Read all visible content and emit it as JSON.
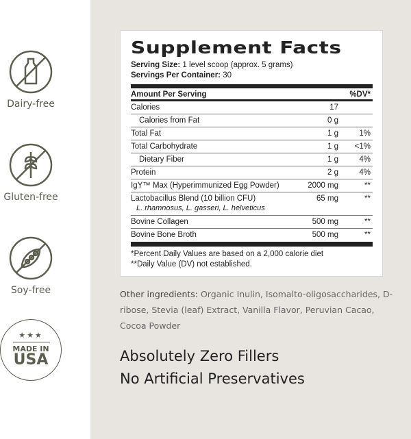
{
  "badges": [
    {
      "label": "Dairy-free",
      "icon": "no-dairy-icon"
    },
    {
      "label": "Gluten-free",
      "icon": "no-gluten-icon"
    },
    {
      "label": "Soy-free",
      "icon": "no-soy-icon"
    },
    {
      "label": "MADE IN USA",
      "line1": "MADE IN",
      "line2": "USA",
      "icon": "made-in-usa-seal"
    }
  ],
  "facts": {
    "title": "Supplement Facts",
    "serving_size_label": "Serving Size:",
    "serving_size": "1 level scoop (approx. 5 grams)",
    "servings_label": "Servings Per Container:",
    "servings": "30",
    "header": {
      "name": "Amount Per Serving",
      "dv": "%DV*"
    },
    "rows": [
      {
        "name": "Calories",
        "amount": "17",
        "dv": ""
      },
      {
        "name": "Calories from Fat",
        "amount": "0 g",
        "dv": ""
      },
      {
        "name": "Total Fat",
        "amount": "1 g",
        "dv": "1%"
      },
      {
        "name": "Total Carbohydrate",
        "amount": "1 g",
        "dv": "<1%"
      },
      {
        "name": "Dietary Fiber",
        "amount": "1 g",
        "dv": "4%"
      },
      {
        "name": "Protein",
        "amount": "2 g",
        "dv": "4%"
      },
      {
        "name": "IgY™ Max (Hyperimmunized Egg Powder)",
        "amount": "2000 mg",
        "dv": "**"
      },
      {
        "name": "Lactobacillus Blend (10 billion CFU)",
        "sub": "L. rhamnosus, L. gasseri, L. helveticus",
        "amount": "65 mg",
        "dv": "**"
      },
      {
        "name": "Bovine Collagen",
        "amount": "500 mg",
        "dv": "**"
      },
      {
        "name": "Bovine Bone Broth",
        "amount": "500 mg",
        "dv": "**"
      }
    ],
    "footnote1": "*Percent Daily Values are based on a 2,000 calorie diet",
    "footnote2": "**Daily Value (DV) not established."
  },
  "other": {
    "label": "Other ingredients:",
    "text": " Organic Inulin, Isomalto-oligosaccharides, D-ribose, Stevia (leaf) Extract, Vanilla Flavor, Peruvian Cacao, Cocoa Powder"
  },
  "taglines": [
    "Absolutely Zero Fillers",
    "No Artificial Preservatives"
  ],
  "colors": {
    "icon": "#5d5d50",
    "background": "#e8e5e1"
  }
}
